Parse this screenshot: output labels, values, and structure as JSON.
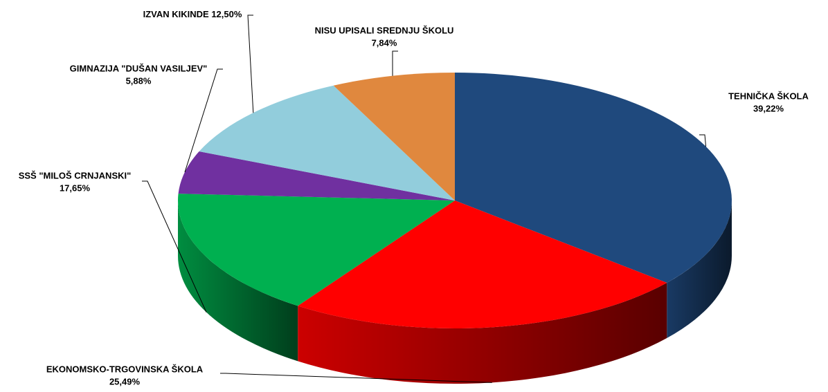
{
  "chart_data": {
    "type": "pie",
    "categories": [
      "TEHNIČKA ŠKOLA",
      "EKONOMSKO-TRGOVINSKA ŠKOLA",
      "SSŠ \"MILOŠ CRNJANSKI\"",
      "GIMNAZIJA \"DUŠAN VASILJEV\"",
      "IZVAN KIKINDE",
      "NISU UPISALI SREDNJU ŠKOLU"
    ],
    "values": [
      39.22,
      25.49,
      17.65,
      5.88,
      12.5,
      7.84
    ],
    "value_labels": [
      "39,22%",
      "25,49%",
      "17,65%",
      "5,88%",
      "12,50%",
      "7,84%"
    ],
    "colors": [
      "#1f497d",
      "#ff0000",
      "#00b050",
      "#7030a0",
      "#92cddc",
      "#e0883e"
    ]
  }
}
